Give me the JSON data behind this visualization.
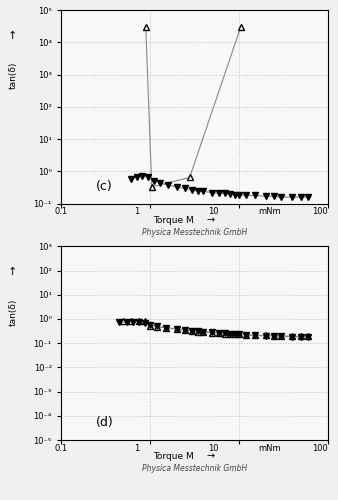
{
  "panel_c": {
    "label": "(c)",
    "open_triangle_up": {
      "x": [
        0.9,
        1.05,
        2.8,
        10.5
      ],
      "y": [
        30000.0,
        0.33,
        0.65,
        30000.0
      ],
      "marker": "^",
      "linestyle": "-"
    },
    "filled_triangle_down": {
      "x": [
        0.62,
        0.72,
        0.82,
        0.95,
        1.1,
        1.3,
        1.6,
        2.0,
        2.5,
        3.0,
        3.5,
        4.0,
        5.0,
        6.0,
        7.0,
        8.0,
        9.0,
        10.0,
        12.0,
        15.0,
        20.0,
        25.0,
        30.0,
        40.0,
        50.0,
        60.0
      ],
      "y": [
        0.57,
        0.67,
        0.7,
        0.67,
        0.52,
        0.44,
        0.38,
        0.33,
        0.3,
        0.27,
        0.25,
        0.24,
        0.22,
        0.21,
        0.21,
        0.2,
        0.19,
        0.19,
        0.18,
        0.18,
        0.17,
        0.17,
        0.16,
        0.16,
        0.16,
        0.16
      ],
      "marker": "v",
      "linestyle": "-"
    },
    "ylabel": "tan(δ)",
    "xlim": [
      0.1,
      100
    ],
    "ylim": [
      0.1,
      100000.0
    ],
    "ytick_vals": [
      0.1,
      1,
      10,
      100,
      1000,
      10000,
      100000
    ],
    "ytick_labels": [
      "10⁻¹",
      "10⁰",
      "10¹",
      "10²",
      "10³",
      "10⁴",
      "10⁵"
    ]
  },
  "panel_d": {
    "label": "(d)",
    "open_triangle_up": {
      "x": [
        0.5,
        0.62,
        0.75,
        0.88,
        1.0,
        1.2,
        1.5,
        2.0,
        2.5,
        3.0,
        3.5,
        4.0,
        5.0,
        6.0,
        7.0,
        8.0,
        9.0,
        10.0,
        12.0,
        15.0,
        20.0,
        25.0,
        30.0,
        40.0,
        50.0,
        60.0
      ],
      "y": [
        0.8,
        0.85,
        0.85,
        0.8,
        0.52,
        0.48,
        0.43,
        0.38,
        0.34,
        0.32,
        0.3,
        0.29,
        0.27,
        0.26,
        0.25,
        0.24,
        0.24,
        0.23,
        0.22,
        0.21,
        0.21,
        0.2,
        0.2,
        0.19,
        0.19,
        0.19
      ],
      "marker": "^",
      "linestyle": "-"
    },
    "filled_triangle_down": {
      "x": [
        0.45,
        0.55,
        0.65,
        0.75,
        0.88,
        1.0,
        1.2,
        1.5,
        2.0,
        2.5,
        3.0,
        3.5,
        4.0,
        5.0,
        6.0,
        7.0,
        8.0,
        9.0,
        10.0,
        12.0,
        15.0,
        20.0,
        25.0,
        30.0,
        40.0,
        50.0,
        60.0
      ],
      "y": [
        0.72,
        0.75,
        0.77,
        0.73,
        0.66,
        0.57,
        0.5,
        0.44,
        0.39,
        0.36,
        0.33,
        0.31,
        0.3,
        0.28,
        0.27,
        0.26,
        0.25,
        0.24,
        0.23,
        0.22,
        0.21,
        0.2,
        0.2,
        0.19,
        0.18,
        0.18,
        0.18
      ],
      "marker": "v",
      "linestyle": "-"
    },
    "ylabel": "tan(δ)",
    "xlim": [
      0.1,
      100
    ],
    "ylim": [
      1e-05,
      1000.0
    ],
    "ytick_vals": [
      1e-05,
      0.0001,
      0.001,
      0.01,
      0.1,
      1.0,
      10.0,
      100.0,
      1000.0
    ],
    "ytick_labels": [
      "10⁻⁵",
      "10⁻⁴",
      "10⁻³",
      "10⁻²",
      "10⁻¹",
      "10⁰",
      "10¹",
      "10²",
      "10³"
    ]
  },
  "footer": "Physica Messtechnik GmbH",
  "xlabel_text": "Torque M",
  "xlabel_unit": "mNm",
  "background_color": "#f0f0f0",
  "plot_bg_color": "#f8f8f8",
  "grid_color": "#c0c0c0",
  "line_color": "#888888",
  "marker_size": 4,
  "linewidth": 0.8
}
